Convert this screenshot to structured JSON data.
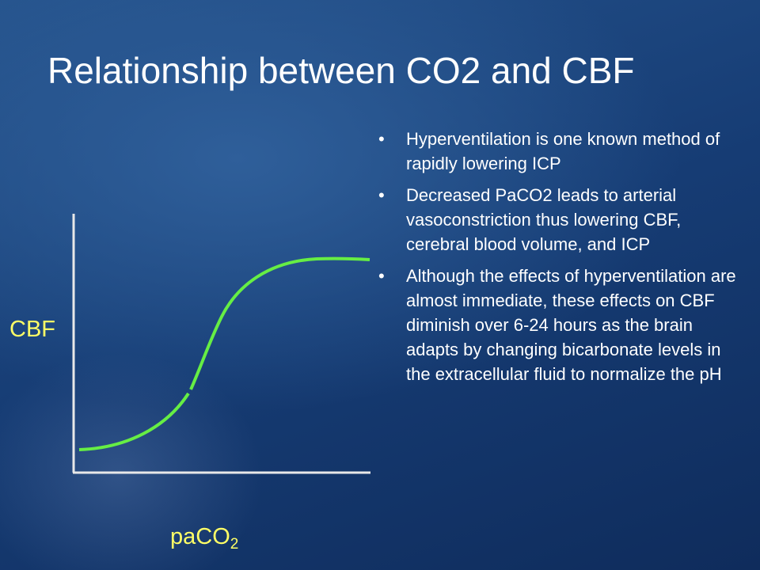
{
  "slide": {
    "title": "Relationship between CO2 and CBF",
    "bullets": [
      "Hyperventilation is one known method of rapidly lowering ICP",
      "Decreased PaCO2 leads to arterial vasoconstriction thus lowering CBF, cerebral blood volume, and ICP",
      " Although the effects of hyperventilation are almost immediate, these effects on CBF diminish over 6-24 hours as the brain adapts by changing bicarbonate levels in the extracellular fluid to normalize the pH"
    ],
    "diagram": {
      "y_label": "CBF",
      "x_label": {
        "text": "paCO",
        "subscript": "2"
      }
    }
  }
}
